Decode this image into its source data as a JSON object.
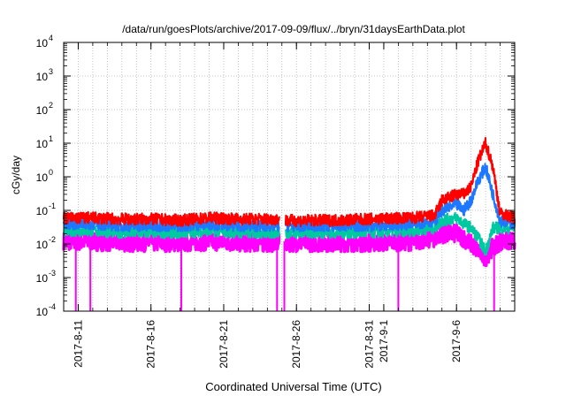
{
  "chart_data": {
    "type": "line",
    "title": "/data/run/goesPlots/archive/2017-09-09/flux/../bryn/31daysEarthData.plot",
    "xlabel": "Coordinated Universal Time (UTC)",
    "ylabel": "cGy/day",
    "yscale": "log",
    "ylim": [
      0.0001,
      10000
    ],
    "xlim": [
      "2017-08-10",
      "2017-09-10"
    ],
    "grid": true,
    "y_ticks": [
      {
        "value": 0.0001,
        "base": "10",
        "exp": "-4"
      },
      {
        "value": 0.001,
        "base": "10",
        "exp": "-3"
      },
      {
        "value": 0.01,
        "base": "10",
        "exp": "-2"
      },
      {
        "value": 0.1,
        "base": "10",
        "exp": "-1"
      },
      {
        "value": 1,
        "base": "10",
        "exp": "0"
      },
      {
        "value": 10,
        "base": "10",
        "exp": "1"
      },
      {
        "value": 100,
        "base": "10",
        "exp": "2"
      },
      {
        "value": 1000,
        "base": "10",
        "exp": "3"
      },
      {
        "value": 10000,
        "base": "10",
        "exp": "4"
      }
    ],
    "x_ticks": [
      {
        "date": "2017-08-11",
        "label": "2017-8-11"
      },
      {
        "date": "2017-08-16",
        "label": "2017-8-16"
      },
      {
        "date": "2017-08-21",
        "label": "2017-8-21"
      },
      {
        "date": "2017-08-26",
        "label": "2017-8-26"
      },
      {
        "date": "2017-08-31",
        "label": "2017-8-31"
      },
      {
        "date": "2017-09-01",
        "label": "2017-9-1"
      },
      {
        "date": "2017-09-06",
        "label": "2017-9-6"
      }
    ],
    "data_gaps": [
      [
        "2017-08-24T20:00",
        "2017-08-25T06:00"
      ]
    ],
    "series": [
      {
        "color": "#ff0000",
        "x": [
          "2017-08-10",
          "2017-08-12",
          "2017-08-14",
          "2017-08-16",
          "2017-08-18",
          "2017-08-20",
          "2017-08-22",
          "2017-08-24T20:00",
          "2017-08-25T06:00",
          "2017-08-28",
          "2017-08-31",
          "2017-09-03",
          "2017-09-04T12:00",
          "2017-09-05",
          "2017-09-06",
          "2017-09-06T12:00",
          "2017-09-07",
          "2017-09-07T12:00",
          "2017-09-08",
          "2017-09-08T12:00",
          "2017-09-09",
          "2017-09-10"
        ],
        "y": [
          0.06,
          0.06,
          0.055,
          0.055,
          0.05,
          0.06,
          0.055,
          0.055,
          0.05,
          0.05,
          0.055,
          0.06,
          0.07,
          0.2,
          0.3,
          0.3,
          0.5,
          3.0,
          10.0,
          2.0,
          0.08,
          0.06
        ]
      },
      {
        "color": "#1e78ff",
        "x": [
          "2017-08-10",
          "2017-08-12",
          "2017-08-14",
          "2017-08-16",
          "2017-08-18",
          "2017-08-20",
          "2017-08-22",
          "2017-08-24T20:00",
          "2017-08-25T06:00",
          "2017-08-28",
          "2017-08-31",
          "2017-09-03",
          "2017-09-04T12:00",
          "2017-09-05",
          "2017-09-06",
          "2017-09-06T12:00",
          "2017-09-07",
          "2017-09-07T12:00",
          "2017-09-08",
          "2017-09-08T12:00",
          "2017-09-09",
          "2017-09-10"
        ],
        "y": [
          0.04,
          0.04,
          0.035,
          0.035,
          0.035,
          0.04,
          0.035,
          0.035,
          0.035,
          0.035,
          0.035,
          0.04,
          0.05,
          0.1,
          0.15,
          0.1,
          0.2,
          0.8,
          2.0,
          0.3,
          0.05,
          0.04
        ]
      },
      {
        "color": "#00c8a0",
        "x": [
          "2017-08-10",
          "2017-08-12",
          "2017-08-14",
          "2017-08-16",
          "2017-08-18",
          "2017-08-20",
          "2017-08-22",
          "2017-08-24T20:00",
          "2017-08-25T06:00",
          "2017-08-28",
          "2017-08-31",
          "2017-09-03",
          "2017-09-04T12:00",
          "2017-09-05",
          "2017-09-06",
          "2017-09-06T12:00",
          "2017-09-07",
          "2017-09-07T12:00",
          "2017-09-08",
          "2017-09-08T12:00",
          "2017-09-09",
          "2017-09-10"
        ],
        "y": [
          0.025,
          0.025,
          0.022,
          0.022,
          0.022,
          0.025,
          0.022,
          0.022,
          0.022,
          0.022,
          0.022,
          0.025,
          0.03,
          0.05,
          0.06,
          0.04,
          0.03,
          0.015,
          0.006,
          0.03,
          0.03,
          0.03
        ]
      },
      {
        "color": "#ff00ff",
        "x": [
          "2017-08-10",
          "2017-08-12",
          "2017-08-14",
          "2017-08-16",
          "2017-08-18",
          "2017-08-20",
          "2017-08-22",
          "2017-08-24T20:00",
          "2017-08-25T06:00",
          "2017-08-28",
          "2017-08-31",
          "2017-09-03",
          "2017-09-04T12:00",
          "2017-09-05",
          "2017-09-06",
          "2017-09-06T12:00",
          "2017-09-07",
          "2017-09-07T12:00",
          "2017-09-08",
          "2017-09-08T12:00",
          "2017-09-09",
          "2017-09-10"
        ],
        "y": [
          0.012,
          0.012,
          0.011,
          0.011,
          0.011,
          0.012,
          0.011,
          0.011,
          0.011,
          0.011,
          0.011,
          0.012,
          0.015,
          0.02,
          0.02,
          0.015,
          0.01,
          0.006,
          0.004,
          0.008,
          0.012,
          0.012
        ]
      }
    ],
    "spikes": [
      {
        "date": "2017-08-10T20:00",
        "color": "#ff00ff",
        "y_low": 0.0001
      },
      {
        "date": "2017-08-11T20:00",
        "color": "#ff00ff",
        "y_low": 0.0001
      },
      {
        "date": "2017-08-18T02:00",
        "color": "#ff00ff",
        "y_low": 0.0001
      },
      {
        "date": "2017-08-24T16:00",
        "color": "#ff00ff",
        "y_low": 0.0001
      },
      {
        "date": "2017-08-25T04:00",
        "color": "#ff00ff",
        "y_low": 0.0001
      },
      {
        "date": "2017-09-02T00:00",
        "color": "#ff00ff",
        "y_low": 0.0001
      },
      {
        "date": "2017-09-08T14:00",
        "color": "#ff00ff",
        "y_low": 0.0001
      }
    ]
  }
}
